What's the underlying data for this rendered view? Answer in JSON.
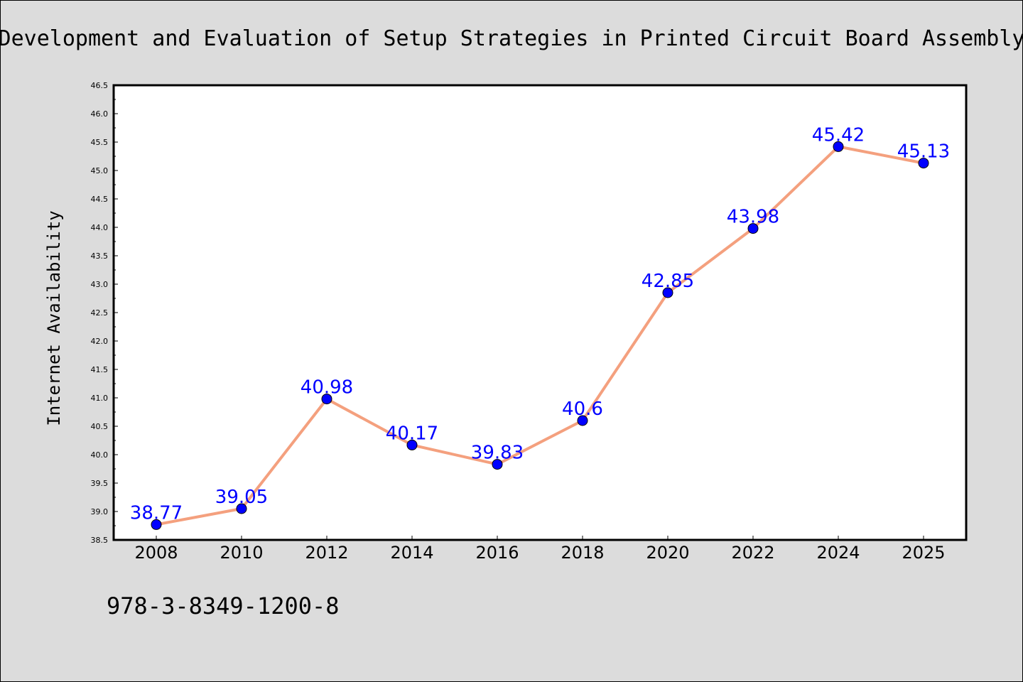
{
  "chart_data": {
    "type": "line",
    "title": "Development and Evaluation of Setup Strategies in Printed Circuit Board Assembly",
    "xlabel": "",
    "ylabel": "Internet Availability",
    "categories": [
      "2008",
      "2010",
      "2012",
      "2014",
      "2016",
      "2018",
      "2020",
      "2022",
      "2024",
      "2025"
    ],
    "series": [
      {
        "values": [
          38.77,
          39.05,
          40.98,
          40.17,
          39.83,
          40.6,
          42.85,
          43.98,
          45.42,
          45.13
        ],
        "labels": [
          "38.77",
          "39.05",
          "40.98",
          "40.17",
          "39.83",
          "40.6",
          "42.85",
          "43.98",
          "45.42",
          "45.13"
        ]
      }
    ],
    "ylim": [
      38.5,
      46.5
    ],
    "yticks": [
      "38.5",
      "39.0",
      "39.5",
      "40.0",
      "40.5",
      "41.0",
      "41.5",
      "42.0",
      "42.5",
      "43.0",
      "43.5",
      "44.0",
      "44.5",
      "45.0",
      "45.5",
      "46.0",
      "46.5"
    ],
    "grid": false,
    "legend": "none",
    "line_color": "#f4a07e",
    "marker_color": "#0000ff",
    "label_color": "#0000ff"
  },
  "footer": {
    "isbn": "978-3-8349-1200-8"
  }
}
